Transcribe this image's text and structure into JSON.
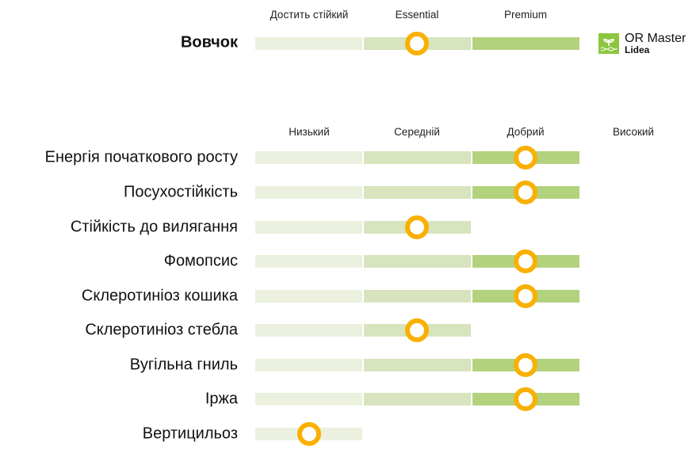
{
  "colors": {
    "low": "#ebf1de",
    "mid": "#d7e4bd",
    "high": "#b3d27e",
    "marker": "#f9b000"
  },
  "top": {
    "title": "Вовчок",
    "headers": [
      "Достить стійкий",
      "Essential",
      "Premium"
    ],
    "level": 2,
    "segments": 3
  },
  "logo": {
    "main": "OR Master",
    "sub": "Lidea",
    "icon": "sprout-dna-icon"
  },
  "traits": {
    "headers": [
      "Низький",
      "Середній",
      "Добрий",
      "Високий"
    ],
    "rows": [
      {
        "label": "Енергія початкового росту",
        "level": 3
      },
      {
        "label": "Посухостійкість",
        "level": 3
      },
      {
        "label": "Стійкість до вилягання",
        "level": 2
      },
      {
        "label": "Фомопсис",
        "level": 3
      },
      {
        "label": "Склеротиніоз кошика",
        "level": 3
      },
      {
        "label": "Склеротиніоз стебла",
        "level": 2
      },
      {
        "label": "Вугільна гниль",
        "level": 3
      },
      {
        "label": "Іржа",
        "level": 3
      },
      {
        "label": "Вертицильоз",
        "level": 1
      }
    ]
  }
}
